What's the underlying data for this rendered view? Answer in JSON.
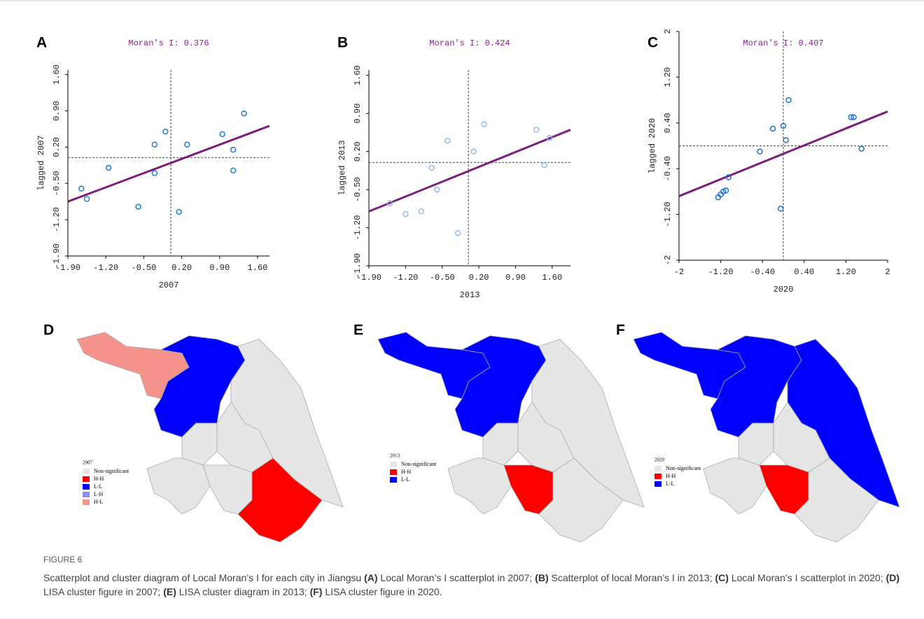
{
  "chart_data": [
    {
      "type": "scatter",
      "label": "A",
      "title": "Moran's I: 0.376",
      "x_label": "2007",
      "y_label": "lagged 2007",
      "x": [
        -1.65,
        -1.55,
        -1.15,
        -0.6,
        -0.3,
        -0.3,
        -0.1,
        0.15,
        0.3,
        0.95,
        1.15,
        1.15,
        1.35
      ],
      "values": [
        -0.6,
        -0.8,
        -0.2,
        -0.95,
        0.25,
        -0.3,
        0.5,
        -1.05,
        0.25,
        0.45,
        0.15,
        -0.25,
        0.85
      ],
      "color": "#1e7bd8",
      "trend_line": {
        "x": [
          -1.9,
          1.82
        ],
        "y": [
          -0.85,
          0.61
        ],
        "color": "#7b1f7a"
      },
      "xlim": [
        -1.9,
        1.82
      ],
      "ylim": [
        -1.9,
        1.69
      ],
      "xticks": [
        {
          "value": -1.9,
          "label": "-1.90"
        },
        {
          "value": -1.2,
          "label": "-1.20"
        },
        {
          "value": -0.5,
          "label": "-0.50"
        },
        {
          "value": 0.2,
          "label": "0.20"
        },
        {
          "value": 0.9,
          "label": "0.90"
        },
        {
          "value": 1.6,
          "label": "1.60"
        }
      ],
      "yticks": [
        {
          "value": -1.9,
          "label": "-1.90"
        },
        {
          "value": -1.2,
          "label": "-1.20"
        },
        {
          "value": -0.5,
          "label": "-0.50"
        },
        {
          "value": 0.2,
          "label": "0.20"
        },
        {
          "value": 0.9,
          "label": "0.90"
        },
        {
          "value": 1.6,
          "label": "1.60"
        }
      ]
    },
    {
      "type": "scatter",
      "label": "B",
      "title": "Moran's I: 0.424",
      "x_label": "2013",
      "y_label": "lagged 2013",
      "x": [
        -1.5,
        -1.2,
        -0.9,
        -0.7,
        -0.6,
        -0.4,
        -0.2,
        0.1,
        0.3,
        1.3,
        1.45,
        1.55
      ],
      "values": [
        -0.75,
        -0.95,
        -0.9,
        -0.1,
        -0.5,
        0.4,
        -1.3,
        0.2,
        0.7,
        0.6,
        -0.05,
        0.45
      ],
      "color": "#8fbcec",
      "trend_line": {
        "x": [
          -1.9,
          1.95
        ],
        "y": [
          -0.9,
          0.6
        ],
        "color": "#7b1f7a"
      },
      "xlim": [
        -1.9,
        1.95
      ],
      "ylim": [
        -1.9,
        1.7
      ],
      "xticks": [
        {
          "value": -1.9,
          "label": "-1.90"
        },
        {
          "value": -1.2,
          "label": "-1.20"
        },
        {
          "value": -0.5,
          "label": "-0.50"
        },
        {
          "value": 0.2,
          "label": "0.20"
        },
        {
          "value": 0.9,
          "label": "0.90"
        },
        {
          "value": 1.6,
          "label": "1.60"
        }
      ],
      "yticks": [
        {
          "value": -1.9,
          "label": "-1.90"
        },
        {
          "value": -1.2,
          "label": "-1.20"
        },
        {
          "value": -0.5,
          "label": "-0.50"
        },
        {
          "value": 0.2,
          "label": "0.20"
        },
        {
          "value": 0.9,
          "label": "0.90"
        },
        {
          "value": 1.6,
          "label": "1.60"
        }
      ]
    },
    {
      "type": "scatter",
      "label": "C",
      "title": "Moran's I: 0.407",
      "x_label": "2020",
      "y_label": "lagged 2020",
      "x": [
        -1.25,
        -1.2,
        -1.15,
        -1.1,
        -1.05,
        -0.45,
        -0.2,
        0.0,
        0.05,
        0.1,
        -0.05,
        1.3,
        1.35,
        1.5
      ],
      "values": [
        -0.9,
        -0.85,
        -0.8,
        -0.78,
        -0.55,
        -0.1,
        0.3,
        0.35,
        0.1,
        0.8,
        -1.1,
        0.5,
        0.5,
        -0.05
      ],
      "color": "#1e6fd0",
      "trend_line": {
        "x": [
          -2,
          2
        ],
        "y": [
          -0.88,
          0.6
        ],
        "color": "#7b1f7a"
      },
      "xlim": [
        -2,
        2
      ],
      "ylim": [
        -2,
        2
      ],
      "xticks": [
        -2,
        {
          "value": -1.2,
          "label": "-1.20"
        },
        {
          "value": -0.4,
          "label": "-0.40"
        },
        {
          "value": 0.4,
          "label": "0.40"
        },
        {
          "value": 1.2,
          "label": "1.20"
        },
        2
      ],
      "yticks": [
        -2,
        {
          "value": -1.2,
          "label": "-1.20"
        },
        {
          "value": -0.4,
          "label": "-0.40"
        },
        {
          "value": 0.4,
          "label": "0.40"
        },
        {
          "value": 1.2,
          "label": "1.20"
        },
        2
      ]
    }
  ],
  "maps": [
    {
      "label": "D",
      "legend_title": "2007",
      "legend": [
        {
          "label": "Non-significant",
          "color": "#e6e6e6"
        },
        {
          "label": "H-H",
          "color": "#ff0000"
        },
        {
          "label": "L-L",
          "color": "#0000ff"
        },
        {
          "label": "L-H",
          "color": "#8c8cf0"
        },
        {
          "label": "H-L",
          "color": "#f4938c"
        }
      ]
    },
    {
      "label": "E",
      "legend_title": "2013",
      "legend": [
        {
          "label": "Non-significant",
          "color": "#e6e6e6"
        },
        {
          "label": "H-H",
          "color": "#ff0000"
        },
        {
          "label": "L-L",
          "color": "#0000ff"
        }
      ]
    },
    {
      "label": "F",
      "legend_title": "2020",
      "legend": [
        {
          "label": "Non-significant",
          "color": "#e6e6e6"
        },
        {
          "label": "H-H",
          "color": "#ff0000"
        },
        {
          "label": "L-L",
          "color": "#0000ff"
        }
      ]
    }
  ],
  "caption": {
    "label": "FIGURE 6",
    "segments": [
      "Scatterplot and cluster diagram of Local Moran’s I for each city in Jiangsu ",
      "(A)",
      " Local Moran’s I scatterplot in 2007; ",
      "(B)",
      " Scatterplot of local Moran’s I in 2013; ",
      "(C)",
      " Local Moran’s I scatterplot in 2020; ",
      "(D)",
      " LISA cluster figure in 2007; ",
      "(E)",
      " LISA cluster diagram in 2013; ",
      "(F)",
      " LISA cluster figure in 2020."
    ]
  }
}
